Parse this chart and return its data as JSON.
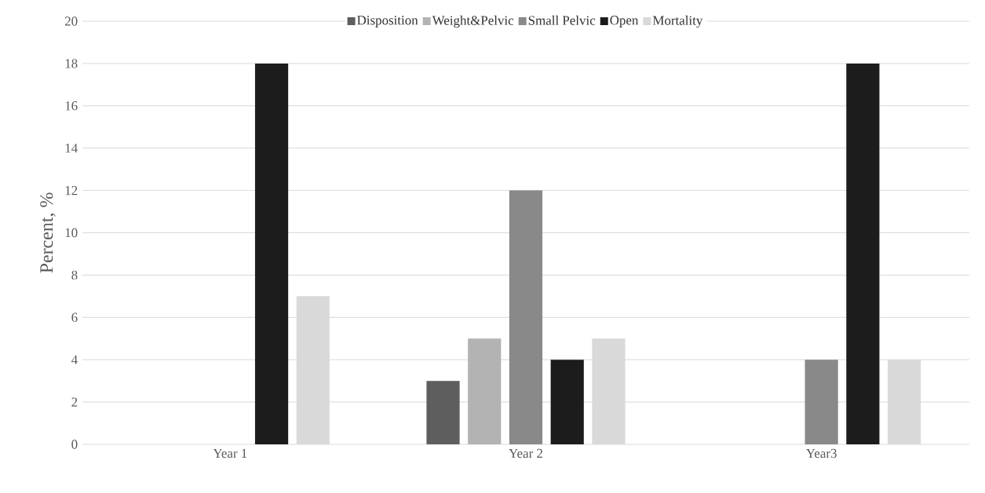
{
  "chart_data": {
    "type": "bar",
    "ylabel": "Percent, %",
    "categories": [
      "Year 1",
      "Year 2",
      "Year3"
    ],
    "series": [
      {
        "name": "Disposition",
        "color": "#5e5e5e",
        "values": [
          0,
          3,
          0
        ]
      },
      {
        "name": "Weight&Pelvic",
        "color": "#b3b3b3",
        "values": [
          0,
          5,
          0
        ]
      },
      {
        "name": "Small Pelvic",
        "color": "#898989",
        "values": [
          0,
          12,
          4
        ]
      },
      {
        "name": "Open",
        "color": "#1c1c1c",
        "values": [
          18,
          4,
          18
        ]
      },
      {
        "name": "Mortality",
        "color": "#d9d9d9",
        "values": [
          7,
          5,
          4
        ]
      }
    ],
    "ylim": [
      0,
      20
    ],
    "yticks": [
      0,
      2,
      4,
      6,
      8,
      10,
      12,
      14,
      16,
      18,
      20
    ],
    "grid": "y",
    "legend": "top"
  }
}
